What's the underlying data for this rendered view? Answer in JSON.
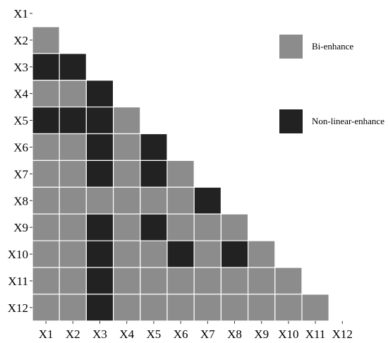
{
  "chart_data": {
    "type": "heatmap",
    "title": "",
    "xlabel": "",
    "ylabel": "",
    "x_labels": [
      "X1",
      "X2",
      "X3",
      "X4",
      "X5",
      "X6",
      "X7",
      "X8",
      "X9",
      "X10",
      "X11",
      "X12"
    ],
    "y_labels": [
      "X1",
      "X2",
      "X3",
      "X4",
      "X5",
      "X6",
      "X7",
      "X8",
      "X9",
      "X10",
      "X11",
      "X12"
    ],
    "categories": {
      "B": {
        "label": "Bi-enhance",
        "color": "#8c8c8c"
      },
      "N": {
        "label": "Non-linear-enhance",
        "color": "#222222"
      }
    },
    "legend_order": [
      "B",
      "N"
    ],
    "legend_position": "right",
    "grid": false,
    "matrix": [
      [],
      [
        "B"
      ],
      [
        "N",
        "N"
      ],
      [
        "B",
        "B",
        "N"
      ],
      [
        "N",
        "N",
        "N",
        "B"
      ],
      [
        "B",
        "B",
        "N",
        "B",
        "N"
      ],
      [
        "B",
        "B",
        "N",
        "B",
        "N",
        "B"
      ],
      [
        "B",
        "B",
        "B",
        "B",
        "B",
        "B",
        "N"
      ],
      [
        "B",
        "B",
        "N",
        "B",
        "N",
        "B",
        "B",
        "B"
      ],
      [
        "B",
        "B",
        "N",
        "B",
        "B",
        "N",
        "B",
        "N",
        "B"
      ],
      [
        "B",
        "B",
        "N",
        "B",
        "B",
        "B",
        "B",
        "B",
        "B",
        "B"
      ],
      [
        "B",
        "B",
        "N",
        "B",
        "B",
        "B",
        "B",
        "B",
        "B",
        "B",
        "B"
      ]
    ]
  }
}
